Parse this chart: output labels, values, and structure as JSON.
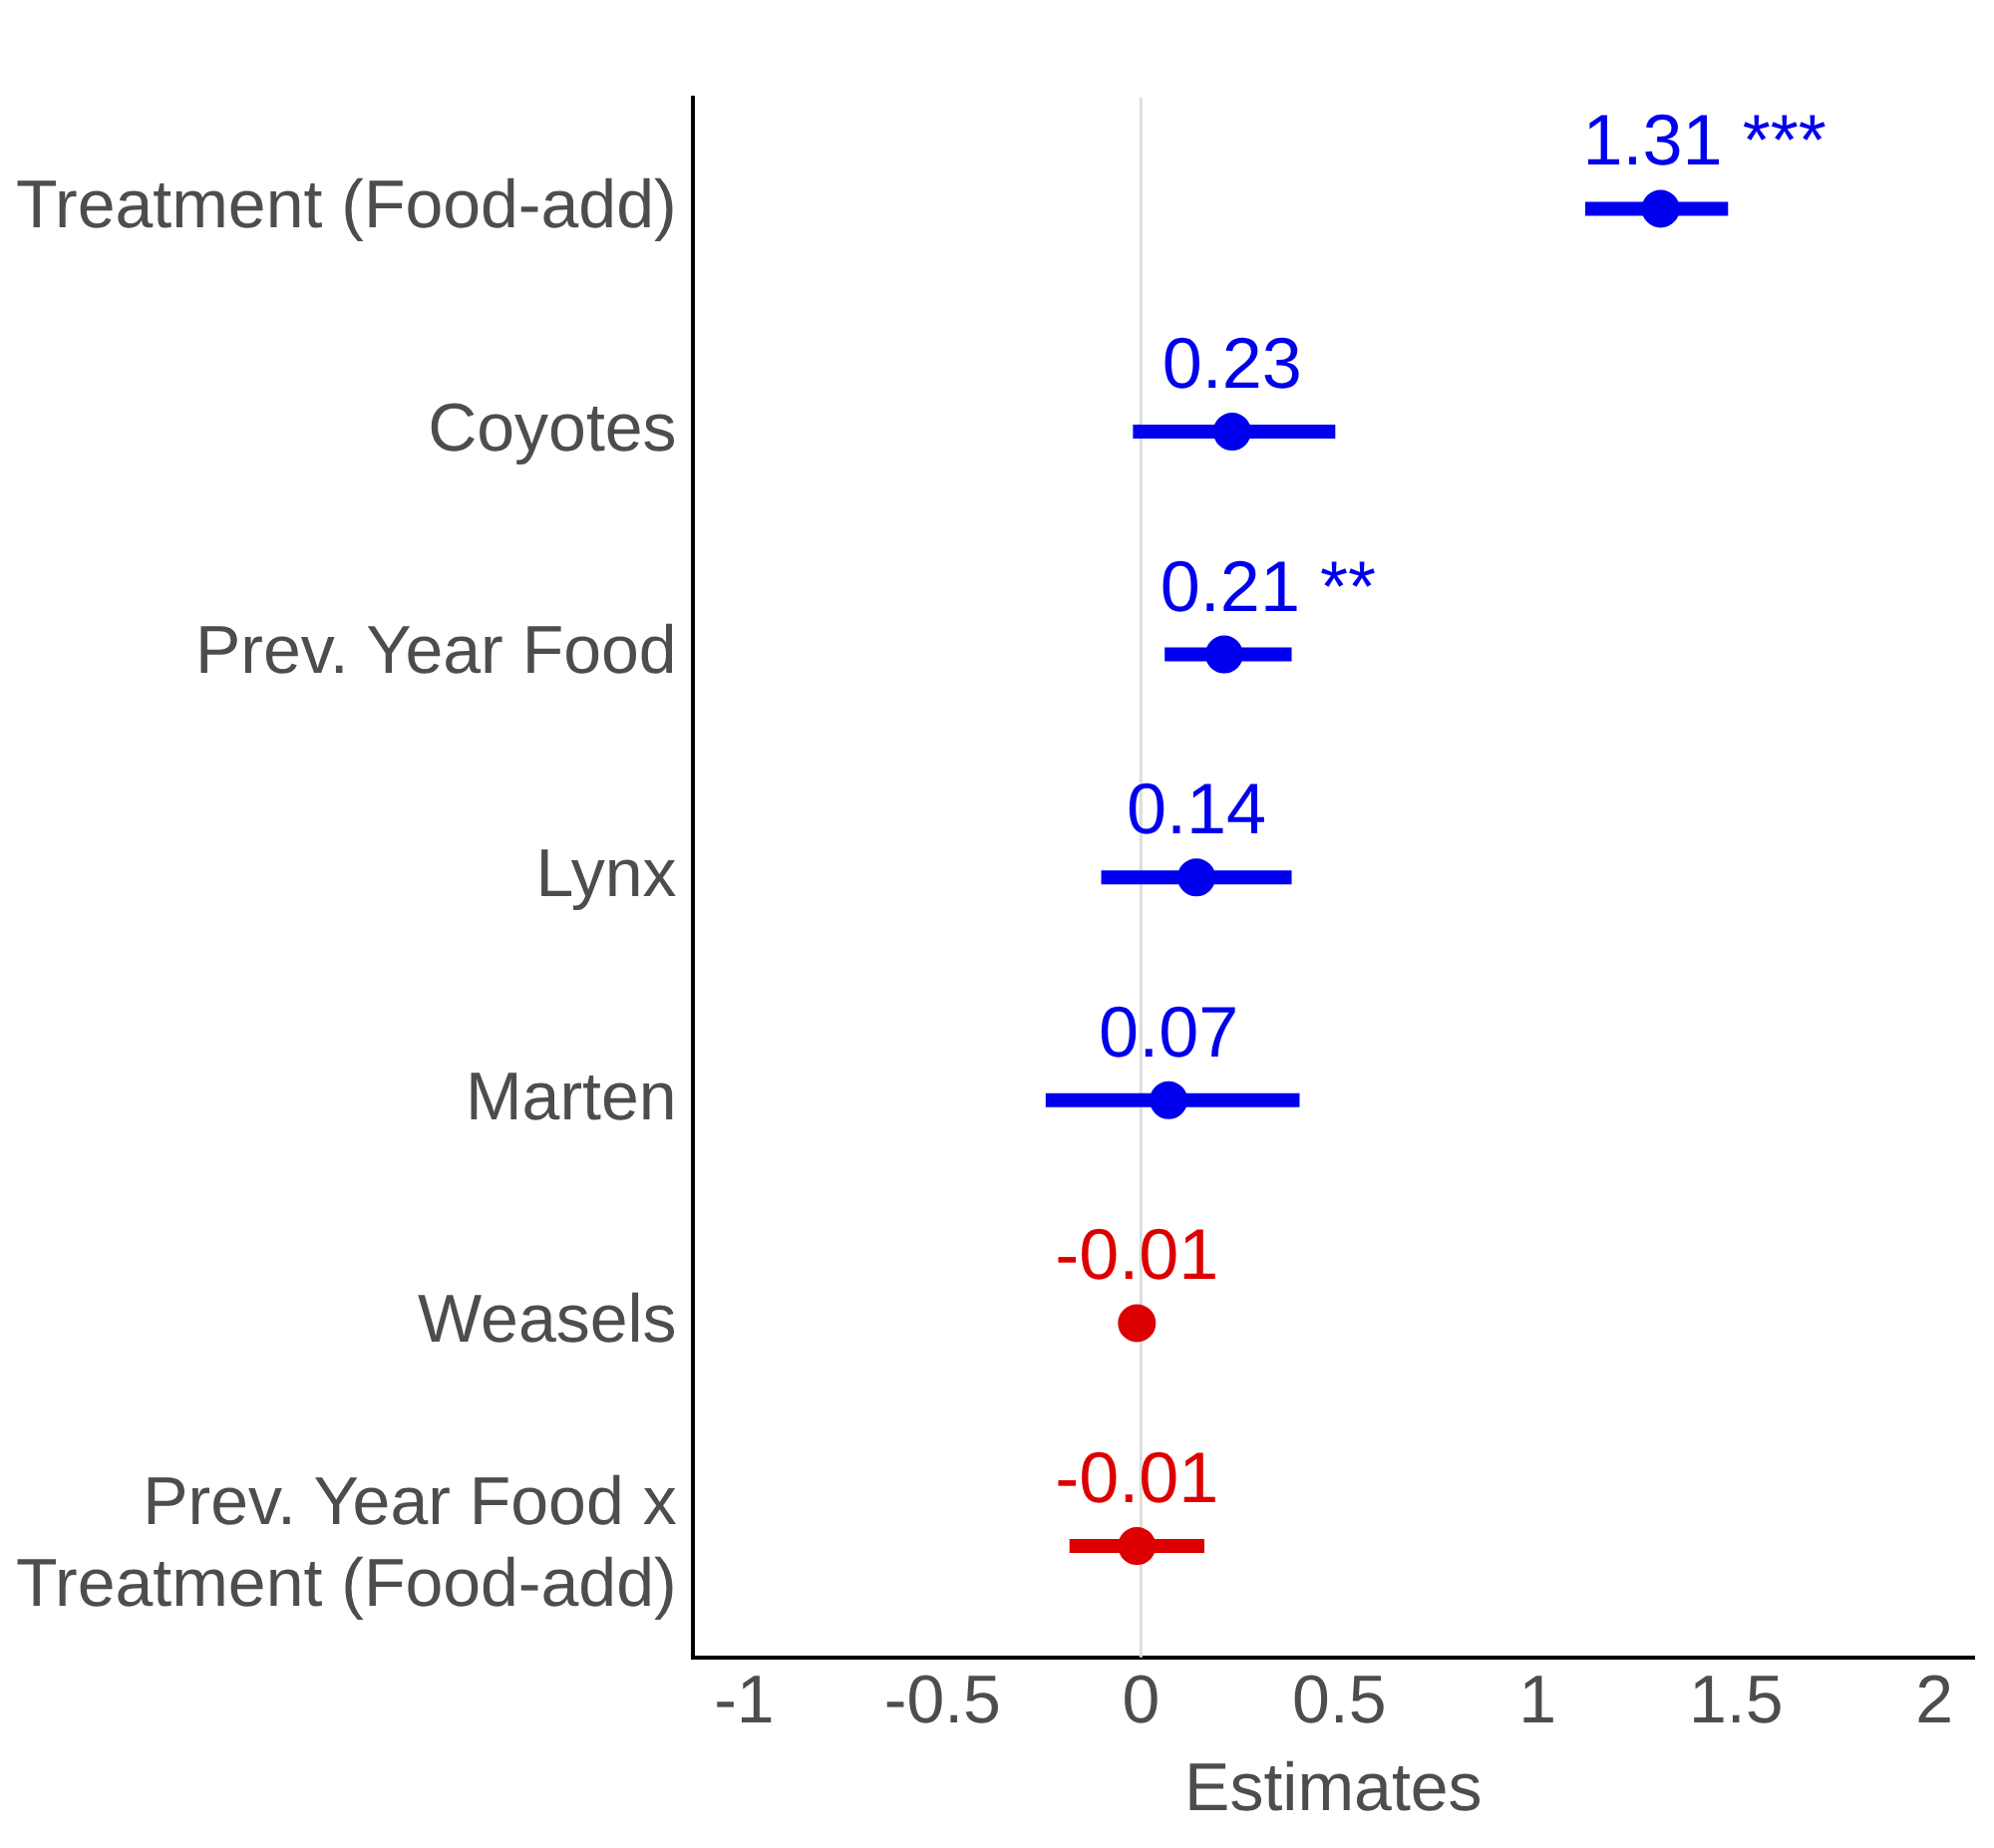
{
  "chart_data": {
    "type": "scatter",
    "orientation": "horizontal",
    "xlabel": "Estimates",
    "categories": [
      "Treatment (Food-add)",
      "Coyotes",
      "Prev. Year Food",
      "Lynx",
      "Marten",
      "Weasels",
      "Prev. Year Food x\nTreatment (Food-add)"
    ],
    "values": [
      1.31,
      0.23,
      0.21,
      0.14,
      0.07,
      -0.01,
      -0.01
    ],
    "errors": [
      [
        1.12,
        1.48
      ],
      [
        -0.02,
        0.49
      ],
      [
        0.06,
        0.38
      ],
      [
        -0.1,
        0.38
      ],
      [
        -0.24,
        0.4
      ],
      null,
      [
        -0.18,
        0.16
      ]
    ],
    "colors": [
      "#0000ee",
      "#0000ee",
      "#0000ee",
      "#0000ee",
      "#0000ee",
      "#dd0000",
      "#dd0000"
    ],
    "value_labels": [
      "1.31 ***",
      "0.23",
      "0.21 **",
      "0.14",
      "0.07",
      "-0.01",
      "-0.01"
    ],
    "xlim": [
      -1.13,
      2.1
    ],
    "xticks": [
      -1,
      -0.5,
      0,
      0.5,
      1,
      1.5,
      2
    ],
    "ref_lines": [
      {
        "axis": "x",
        "value": 0,
        "color": "#dddddd"
      }
    ],
    "grid": false,
    "legend": false,
    "marker": "circle"
  }
}
